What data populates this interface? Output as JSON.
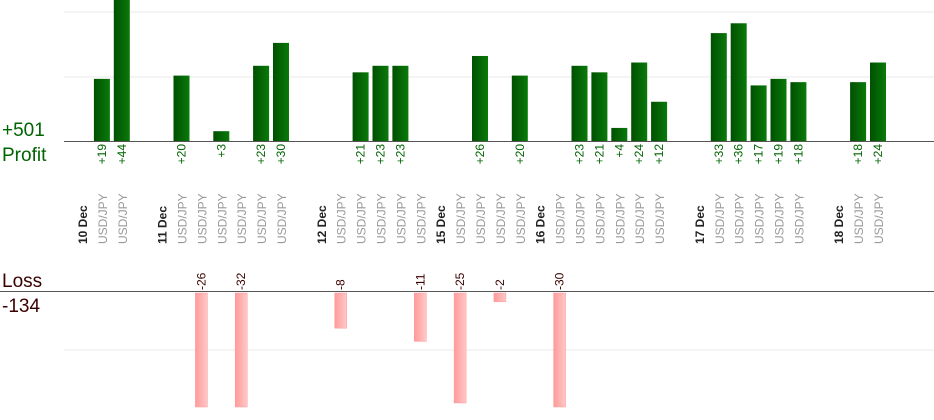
{
  "summary": {
    "profit_total": "+501",
    "profit_label": "Profit",
    "loss_label": "Loss",
    "loss_total": "-134"
  },
  "colors": {
    "profit_bar_dark": "#005000",
    "profit_bar_light": "#0a7a0a",
    "profit_text": "#006400",
    "loss_bar_dark": "#ff9a9a",
    "loss_bar_light": "#ffc8c8",
    "loss_text": "#3a0000",
    "date_text": "#222222",
    "pair_text": "#999999",
    "grid": "#e8e8e8",
    "axis": "#555555"
  },
  "chart_data": {
    "type": "bar",
    "profit_axis": {
      "ylim_visible": [
        0,
        60
      ]
    },
    "loss_axis": {
      "ylim_visible": [
        0,
        -26
      ]
    },
    "columns": [
      {
        "kind": "date",
        "label": "10 Dec"
      },
      {
        "kind": "trade",
        "pair": "USD/JPY",
        "value": 19,
        "label": "+19"
      },
      {
        "kind": "trade",
        "pair": "USD/JPY",
        "value": 44,
        "label": "+44"
      },
      {
        "kind": "gap"
      },
      {
        "kind": "date",
        "label": "11 Dec"
      },
      {
        "kind": "trade",
        "pair": "USD/JPY",
        "value": 20,
        "label": "+20"
      },
      {
        "kind": "trade",
        "pair": "USD/JPY",
        "value": -26,
        "label": "-26"
      },
      {
        "kind": "trade",
        "pair": "USD/JPY",
        "value": 3,
        "label": "+3"
      },
      {
        "kind": "trade",
        "pair": "USD/JPY",
        "value": -32,
        "label": "-32"
      },
      {
        "kind": "trade",
        "pair": "USD/JPY",
        "value": 23,
        "label": "+23"
      },
      {
        "kind": "trade",
        "pair": "USD/JPY",
        "value": 30,
        "label": "+30"
      },
      {
        "kind": "gap"
      },
      {
        "kind": "date",
        "label": "12 Dec"
      },
      {
        "kind": "trade",
        "pair": "USD/JPY",
        "value": -8,
        "label": "-8"
      },
      {
        "kind": "trade",
        "pair": "USD/JPY",
        "value": 21,
        "label": "+21"
      },
      {
        "kind": "trade",
        "pair": "USD/JPY",
        "value": 23,
        "label": "+23"
      },
      {
        "kind": "trade",
        "pair": "USD/JPY",
        "value": 23,
        "label": "+23"
      },
      {
        "kind": "trade",
        "pair": "USD/JPY",
        "value": -11,
        "label": "-11"
      },
      {
        "kind": "date",
        "label": "15 Dec"
      },
      {
        "kind": "trade",
        "pair": "USD/JPY",
        "value": -25,
        "label": "-25"
      },
      {
        "kind": "trade",
        "pair": "USD/JPY",
        "value": 26,
        "label": "+26"
      },
      {
        "kind": "trade",
        "pair": "USD/JPY",
        "value": -2,
        "label": "-2"
      },
      {
        "kind": "trade",
        "pair": "USD/JPY",
        "value": 20,
        "label": "+20"
      },
      {
        "kind": "date",
        "label": "16 Dec"
      },
      {
        "kind": "trade",
        "pair": "USD/JPY",
        "value": -30,
        "label": "-30"
      },
      {
        "kind": "trade",
        "pair": "USD/JPY",
        "value": 23,
        "label": "+23"
      },
      {
        "kind": "trade",
        "pair": "USD/JPY",
        "value": 21,
        "label": "+21"
      },
      {
        "kind": "trade",
        "pair": "USD/JPY",
        "value": 4,
        "label": "+4"
      },
      {
        "kind": "trade",
        "pair": "USD/JPY",
        "value": 24,
        "label": "+24"
      },
      {
        "kind": "trade",
        "pair": "USD/JPY",
        "value": 12,
        "label": "+12"
      },
      {
        "kind": "gap"
      },
      {
        "kind": "date",
        "label": "17 Dec"
      },
      {
        "kind": "trade",
        "pair": "USD/JPY",
        "value": 33,
        "label": "+33"
      },
      {
        "kind": "trade",
        "pair": "USD/JPY",
        "value": 36,
        "label": "+36"
      },
      {
        "kind": "trade",
        "pair": "USD/JPY",
        "value": 17,
        "label": "+17"
      },
      {
        "kind": "trade",
        "pair": "USD/JPY",
        "value": 19,
        "label": "+19"
      },
      {
        "kind": "trade",
        "pair": "USD/JPY",
        "value": 18,
        "label": "+18"
      },
      {
        "kind": "gap"
      },
      {
        "kind": "date",
        "label": "18 Dec"
      },
      {
        "kind": "trade",
        "pair": "USD/JPY",
        "value": 18,
        "label": "+18"
      },
      {
        "kind": "trade",
        "pair": "USD/JPY",
        "value": 24,
        "label": "+24"
      }
    ]
  }
}
